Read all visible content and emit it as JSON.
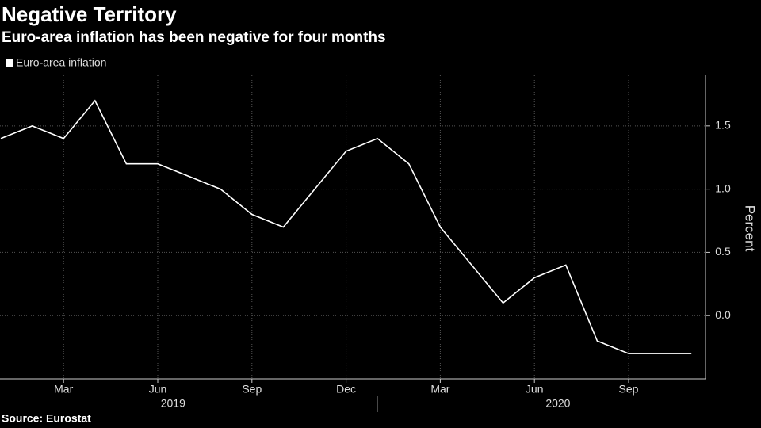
{
  "chart_data": {
    "type": "line",
    "title": "Negative Territory",
    "subtitle": "Euro-area inflation has been negative for four months",
    "source": "Source: Eurostat",
    "y_label": "Percent",
    "categories": [
      null,
      null,
      "Mar",
      null,
      null,
      "Jun",
      null,
      null,
      "Sep",
      null,
      null,
      "Dec",
      null,
      null,
      "Mar",
      null,
      null,
      "Jun",
      null,
      null,
      "Sep",
      null,
      null
    ],
    "years": [
      "2019",
      "2020"
    ],
    "series": [
      {
        "name": "Euro-area inflation",
        "color": "#ffffff",
        "values": [
          1.4,
          1.5,
          1.4,
          1.7,
          1.2,
          1.2,
          1.1,
          1.0,
          0.8,
          0.7,
          1.0,
          1.3,
          1.4,
          1.2,
          0.7,
          0.4,
          0.1,
          0.3,
          0.4,
          -0.2,
          -0.3,
          -0.3,
          -0.3
        ]
      }
    ],
    "ylim": [
      -0.5,
      1.9
    ],
    "yticks": [
      {
        "value": 0,
        "label": "0.0"
      },
      0.5,
      {
        "value": 1,
        "label": "1.0"
      },
      1.5
    ],
    "grid": true
  }
}
